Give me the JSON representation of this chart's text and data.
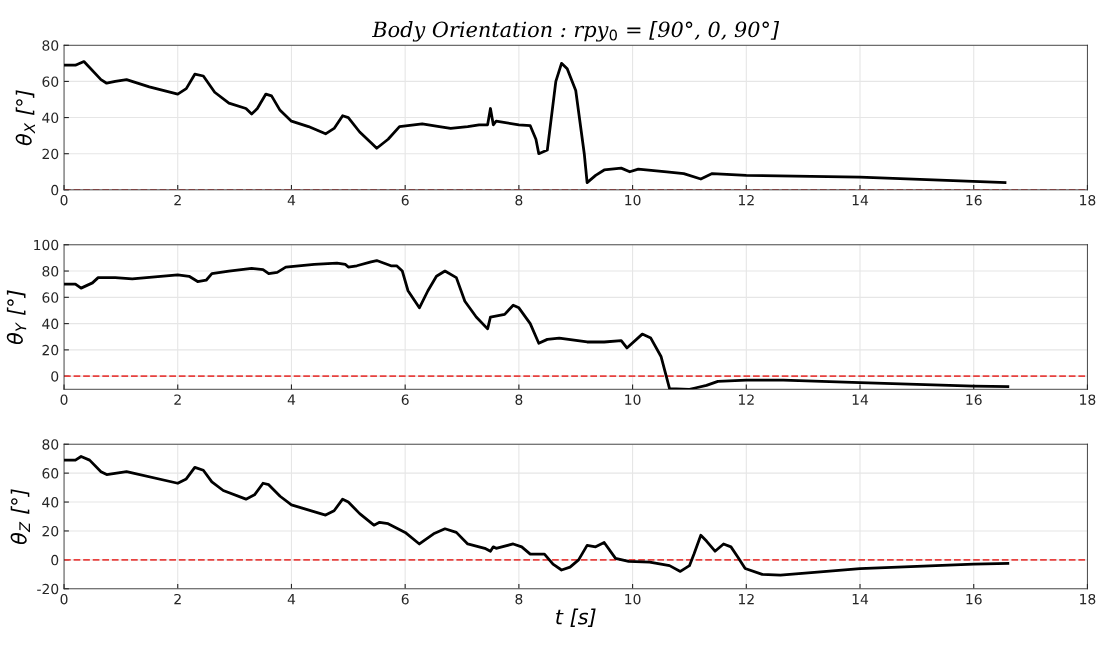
{
  "chart_data": [
    {
      "type": "line",
      "title": "Body Orientation : rpy$_{0}$ = [90°, 0, 90°]",
      "ylabel": "θ$_{X}$ [°]",
      "x": [
        0,
        0.2,
        0.35,
        0.65,
        0.75,
        0.9,
        1.1,
        1.5,
        2.0,
        2.15,
        2.3,
        2.45,
        2.65,
        2.9,
        3.2,
        3.3,
        3.4,
        3.55,
        3.65,
        3.8,
        4.0,
        4.3,
        4.6,
        4.75,
        4.9,
        5.0,
        5.2,
        5.4,
        5.5,
        5.7,
        5.9,
        6.3,
        6.6,
        6.8,
        7.1,
        7.3,
        7.45,
        7.5,
        7.55,
        7.6,
        8.0,
        8.2,
        8.3,
        8.35,
        8.5,
        8.65,
        8.75,
        8.85,
        9.0,
        9.15,
        9.2,
        9.35,
        9.5,
        9.8,
        9.95,
        10.1,
        10.6,
        10.9,
        11.2,
        11.4,
        12.0,
        14.0,
        16.55
      ],
      "series": [
        {
          "color": "#000000",
          "values": [
            69,
            69,
            71,
            61,
            59,
            60,
            61,
            57,
            53,
            56,
            64,
            63,
            54,
            48,
            45,
            42,
            45,
            53,
            52,
            44,
            38,
            35,
            31,
            34,
            41,
            40,
            32,
            26,
            23,
            28,
            35,
            36.5,
            35,
            34,
            35,
            36,
            36,
            45,
            36,
            38,
            36,
            35.5,
            28,
            20,
            22,
            60,
            70,
            67,
            55,
            20,
            4,
            8,
            11,
            12,
            10,
            11.5,
            10,
            9,
            6,
            9,
            8,
            7,
            4
          ]
        }
      ],
      "xlim": [
        0,
        18
      ],
      "xticks": [
        0,
        2,
        4,
        6,
        8,
        10,
        12,
        14,
        16,
        18
      ],
      "ylim": [
        0,
        80
      ],
      "yticks": [
        0,
        20,
        40,
        60,
        80
      ],
      "grid": true,
      "line_style": "solid",
      "marker": "none",
      "ref_lines": [
        {
          "axis": "y",
          "value": 0,
          "color": "#e8423f",
          "line_style": "dashed"
        }
      ]
    },
    {
      "type": "line",
      "ylabel": "θ$_{Y}$ [°]",
      "x": [
        0,
        0.2,
        0.3,
        0.5,
        0.6,
        0.9,
        1.2,
        2.0,
        2.2,
        2.35,
        2.5,
        2.6,
        2.9,
        3.3,
        3.5,
        3.6,
        3.75,
        3.9,
        4.4,
        4.8,
        4.95,
        5.0,
        5.15,
        5.4,
        5.5,
        5.75,
        5.85,
        5.95,
        6.05,
        6.25,
        6.4,
        6.55,
        6.7,
        6.9,
        7.05,
        7.25,
        7.45,
        7.5,
        7.75,
        7.9,
        8.0,
        8.2,
        8.35,
        8.5,
        8.71,
        9.2,
        9.5,
        9.8,
        9.9,
        10.17,
        10.32,
        10.5,
        10.65,
        11.0,
        11.1,
        11.3,
        11.5,
        12.0,
        12.65,
        14.0,
        16.0,
        16.6
      ],
      "series": [
        {
          "color": "#000000",
          "values": [
            70,
            70,
            67,
            71,
            75,
            75,
            74,
            77,
            76,
            72,
            73,
            78,
            80,
            82,
            81,
            78,
            79,
            83,
            85,
            86,
            85,
            83,
            84,
            87,
            88,
            84,
            84,
            80,
            65,
            52,
            65,
            76,
            80,
            75,
            57,
            45,
            36,
            45,
            47,
            54,
            52,
            40,
            25,
            28,
            29,
            26,
            26,
            27,
            21.5,
            32,
            29,
            15,
            -9.5,
            -10,
            -9,
            -7,
            -4,
            -3,
            -3,
            -5,
            -7.5,
            -8
          ]
        }
      ],
      "xlim": [
        0,
        18
      ],
      "xticks": [
        0,
        2,
        4,
        6,
        8,
        10,
        12,
        14,
        16,
        18
      ],
      "ylim": [
        -10,
        100
      ],
      "yticks": [
        0,
        20,
        40,
        60,
        80,
        100
      ],
      "grid": true,
      "line_style": "solid",
      "marker": "none",
      "ref_lines": [
        {
          "axis": "y",
          "value": 0,
          "color": "#e8423f",
          "line_style": "dashed"
        }
      ]
    },
    {
      "type": "line",
      "ylabel": "θ$_{Z}$ [°]",
      "xlabel": "t [s]",
      "x": [
        0,
        0.2,
        0.3,
        0.45,
        0.65,
        0.75,
        1.1,
        2.0,
        2.15,
        2.3,
        2.45,
        2.6,
        2.8,
        3.2,
        3.35,
        3.5,
        3.6,
        3.8,
        4.0,
        4.6,
        4.75,
        4.9,
        5.0,
        5.2,
        5.45,
        5.55,
        5.7,
        6.0,
        6.25,
        6.5,
        6.7,
        6.9,
        7.1,
        7.4,
        7.5,
        7.55,
        7.6,
        7.9,
        8.05,
        8.2,
        8.45,
        8.6,
        8.75,
        8.9,
        9.05,
        9.2,
        9.35,
        9.5,
        9.7,
        9.93,
        10.3,
        10.65,
        10.84,
        11.0,
        11.08,
        11.2,
        11.3,
        11.45,
        11.6,
        11.73,
        11.85,
        11.98,
        12.28,
        12.6,
        13.25,
        14.0,
        16.0,
        16.6
      ],
      "series": [
        {
          "color": "#000000",
          "values": [
            69,
            69,
            71.5,
            69,
            61,
            59,
            61,
            53,
            56,
            64,
            62,
            54,
            48,
            42,
            45,
            53,
            52,
            44,
            38,
            31,
            34,
            42,
            40,
            32,
            24,
            26,
            25,
            19,
            11,
            18,
            21.5,
            19,
            11,
            8,
            6,
            9,
            8,
            11,
            9,
            4,
            4,
            -3,
            -7,
            -5,
            0,
            10,
            9,
            12,
            1,
            -1,
            -1.5,
            -4,
            -8,
            -4,
            4,
            17,
            13,
            6,
            11,
            9,
            2,
            -6,
            -10,
            -10.5,
            -8.5,
            -6,
            -3,
            -2.5
          ]
        }
      ],
      "xlim": [
        0,
        18
      ],
      "xticks": [
        0,
        2,
        4,
        6,
        8,
        10,
        12,
        14,
        16,
        18
      ],
      "ylim": [
        -20,
        80
      ],
      "yticks": [
        -20,
        0,
        20,
        40,
        60,
        80
      ],
      "grid": true,
      "line_style": "solid",
      "marker": "none",
      "ref_lines": [
        {
          "axis": "y",
          "value": 0,
          "color": "#e8423f",
          "line_style": "dashed"
        }
      ]
    }
  ]
}
